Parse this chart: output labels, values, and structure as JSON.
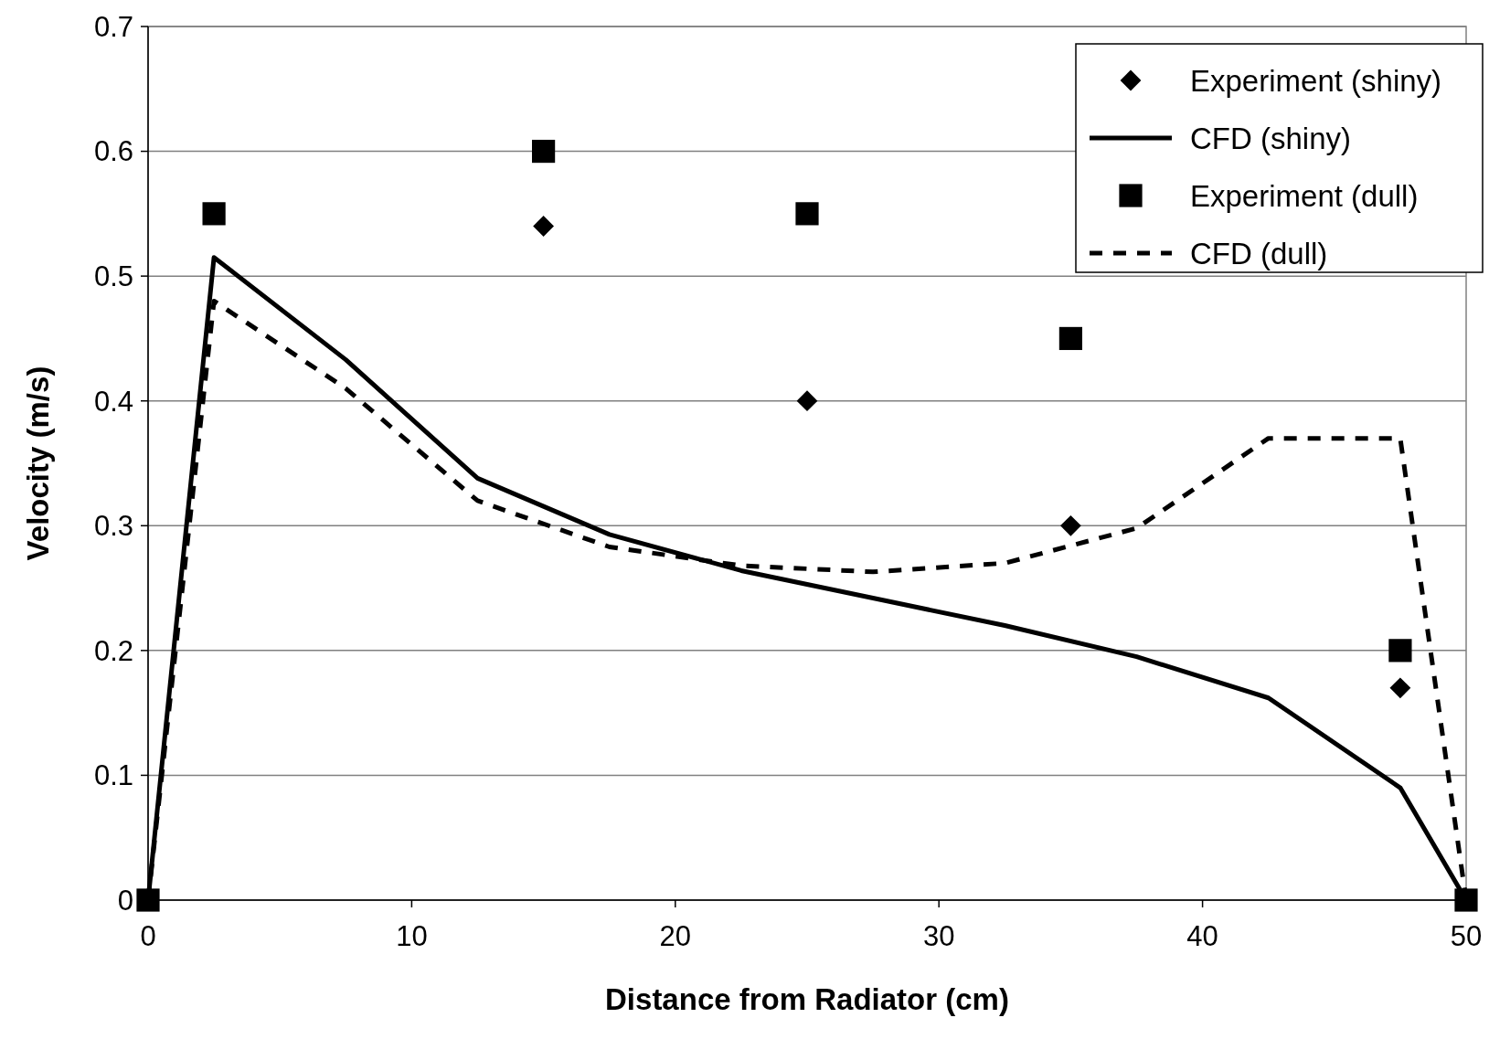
{
  "chart_data": {
    "type": "line",
    "xlabel": "Distance from Radiator (cm)",
    "ylabel": "Velocity (m/s)",
    "xlim": [
      0,
      50
    ],
    "xticks": [
      0,
      10,
      20,
      30,
      40,
      50
    ],
    "ylim": [
      0,
      0.7
    ],
    "yticks": [
      0,
      0.1,
      0.2,
      0.3,
      0.4,
      0.5,
      0.6,
      0.7
    ],
    "grid": "y",
    "legend": "top right",
    "series": [
      {
        "name": "Experiment (shiny)",
        "type": "scatter",
        "marker": "diamond",
        "color": "#000000",
        "x": [
          15,
          25,
          35,
          47.5
        ],
        "values": [
          0.54,
          0.4,
          0.3,
          0.17
        ]
      },
      {
        "name": "CFD (shiny)",
        "type": "line",
        "line_style": "solid",
        "color": "#000000",
        "x": [
          0,
          2.5,
          7.5,
          12.5,
          17.5,
          22.5,
          27.5,
          32.5,
          37.5,
          42.5,
          47.5,
          50
        ],
        "values": [
          0,
          0.515,
          0.433,
          0.338,
          0.293,
          0.264,
          0.242,
          0.22,
          0.195,
          0.162,
          0.09,
          0
        ]
      },
      {
        "name": "Experiment (dull)",
        "type": "scatter",
        "marker": "square",
        "color": "#000000",
        "x": [
          0,
          2.5,
          15,
          25,
          35,
          47.5,
          50
        ],
        "values": [
          0,
          0.55,
          0.6,
          0.55,
          0.45,
          0.2,
          0
        ]
      },
      {
        "name": "CFD (dull)",
        "type": "line",
        "line_style": "dashed",
        "color": "#000000",
        "x": [
          0,
          2.5,
          7.5,
          12.5,
          17.5,
          22.5,
          27.5,
          32.5,
          37.5,
          42.5,
          47.5,
          50
        ],
        "values": [
          0,
          0.48,
          0.41,
          0.32,
          0.283,
          0.268,
          0.263,
          0.27,
          0.298,
          0.37,
          0.37,
          0
        ]
      }
    ]
  }
}
